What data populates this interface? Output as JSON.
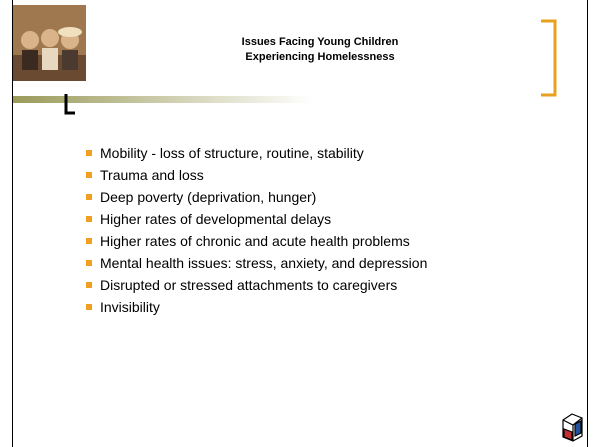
{
  "slide": {
    "title": [
      "Issues Facing Young Children",
      "Experiencing Homelessness"
    ],
    "bullets": [
      "Mobility - loss of structure, routine, stability",
      "Trauma and loss",
      "Deep poverty (deprivation, hunger)",
      "Higher rates of developmental delays",
      "Higher rates of chronic and acute health problems",
      "Mental health issues: stress, anxiety, and depression",
      "Disrupted or stressed attachments to caregivers",
      "Invisibility"
    ]
  }
}
